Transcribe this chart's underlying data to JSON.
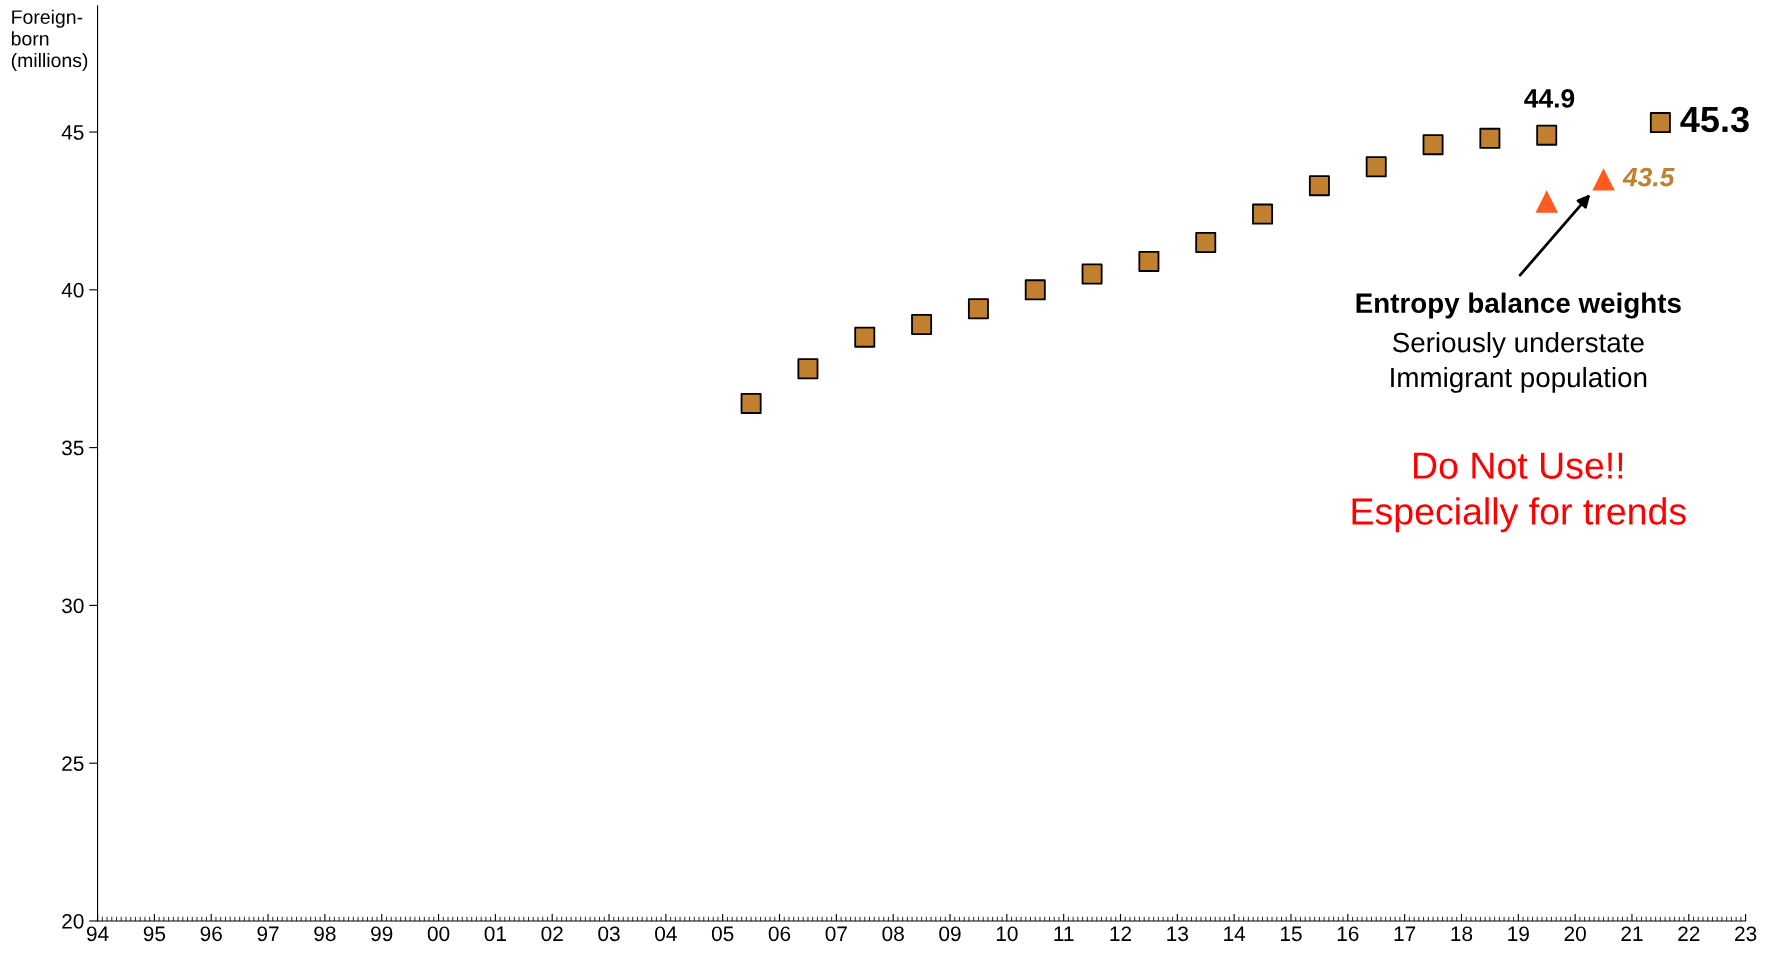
{
  "chart_data": {
    "type": "scatter",
    "ylabel": "Foreign-\nborn\n(millions)",
    "xlim": [
      1994,
      2023
    ],
    "xticks": [
      {
        "value": 1994,
        "label": "94"
      },
      {
        "value": 1995,
        "label": "95"
      },
      {
        "value": 1996,
        "label": "96"
      },
      {
        "value": 1997,
        "label": "97"
      },
      {
        "value": 1998,
        "label": "98"
      },
      {
        "value": 1999,
        "label": "99"
      },
      {
        "value": 2000,
        "label": "00"
      },
      {
        "value": 2001,
        "label": "01"
      },
      {
        "value": 2002,
        "label": "02"
      },
      {
        "value": 2003,
        "label": "03"
      },
      {
        "value": 2004,
        "label": "04"
      },
      {
        "value": 2005,
        "label": "05"
      },
      {
        "value": 2006,
        "label": "06"
      },
      {
        "value": 2007,
        "label": "07"
      },
      {
        "value": 2008,
        "label": "08"
      },
      {
        "value": 2009,
        "label": "09"
      },
      {
        "value": 2010,
        "label": "10"
      },
      {
        "value": 2011,
        "label": "11"
      },
      {
        "value": 2012,
        "label": "12"
      },
      {
        "value": 2013,
        "label": "13"
      },
      {
        "value": 2014,
        "label": "14"
      },
      {
        "value": 2015,
        "label": "15"
      },
      {
        "value": 2016,
        "label": "16"
      },
      {
        "value": 2017,
        "label": "17"
      },
      {
        "value": 2018,
        "label": "18"
      },
      {
        "value": 2019,
        "label": "19"
      },
      {
        "value": 2020,
        "label": "20"
      },
      {
        "value": 2021,
        "label": "21"
      },
      {
        "value": 2022,
        "label": "22"
      },
      {
        "value": 2023,
        "label": "23"
      }
    ],
    "ylim": [
      20,
      49
    ],
    "yticks": [
      20,
      25,
      30,
      35,
      40,
      45
    ],
    "grid": false,
    "legend": false,
    "series": [
      {
        "color": "#c0802f",
        "marker": "square",
        "x": [
          2005.5,
          2006.5,
          2007.5,
          2008.5,
          2009.5,
          2010.5,
          2011.5,
          2012.5,
          2013.5,
          2014.5,
          2015.5,
          2016.5,
          2017.5,
          2018.5,
          2019.5,
          2021.5
        ],
        "values": [
          36.4,
          37.5,
          38.5,
          38.9,
          39.4,
          40.0,
          40.5,
          40.9,
          41.5,
          42.4,
          43.3,
          43.9,
          44.6,
          44.8,
          44.9,
          45.3
        ],
        "value_labels": [
          null,
          null,
          null,
          null,
          null,
          null,
          null,
          null,
          null,
          null,
          null,
          null,
          null,
          null,
          "44.9",
          "45.3"
        ]
      },
      {
        "color": "#ff5a1f",
        "marker": "triangle",
        "x": [
          2019.5,
          2020.5
        ],
        "values": [
          42.8,
          43.5
        ],
        "value_labels": [
          null,
          "43.5"
        ]
      }
    ],
    "annotations": [
      "Entropy balance weights",
      "Seriously understate\nImmigrant population",
      "Do Not Use!!\nEspecially for trends"
    ]
  }
}
